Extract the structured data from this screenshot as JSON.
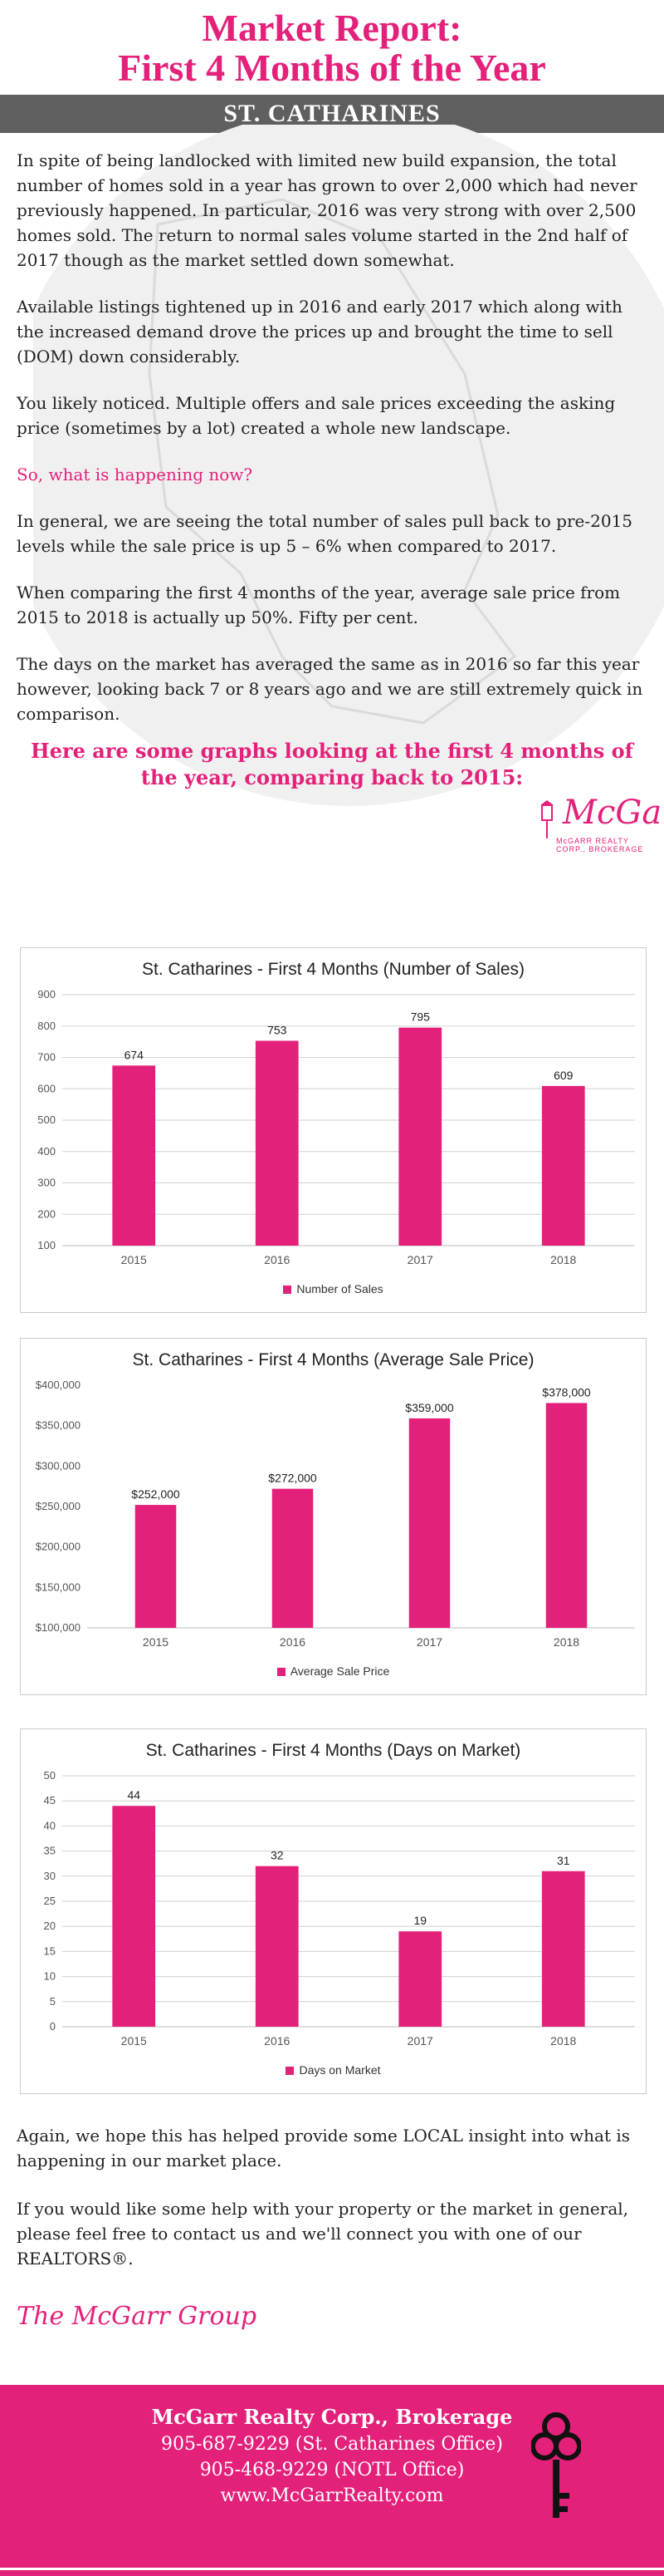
{
  "header": {
    "title_line1": "Market Report:",
    "title_line2": "First 4 Months of the Year",
    "city": "ST. CATHARINES"
  },
  "paragraphs": [
    "In spite of being landlocked with limited new build expansion, the total number of homes sold in a year has grown to over 2,000 which had never previously happened. In particular, 2016 was very strong with over 2,500 homes sold. The return to normal sales volume started in the 2nd half of 2017 though as the market settled down somewhat.",
    "Available listings tightened up in 2016 and early 2017 which along with the increased demand drove the prices up and brought the time to sell (DOM) down considerably.",
    "You likely noticed. Multiple offers and sale prices exceeding the asking price (sometimes by a lot) created a whole new landscape.",
    "So, what is happening now?",
    "In general, we are seeing the total number of sales pull back to pre-2015 levels while the sale price is up 5 – 6% when compared to 2017.",
    "When comparing the first 4 months of the year, average sale price from 2015 to 2018 is actually up 50%. Fifty per cent.",
    "The days on the market has averaged the same as in 2016 so far this year however, looking back 7 or 8 years ago and we are still extremely quick in comparison."
  ],
  "logo": {
    "name": "McGarr",
    "tagline": "McGARR REALTY CORP., BROKERAGE"
  },
  "graphs_heading": "Here are some graphs looking at the first 4 months of the year, comparing back to 2015:",
  "chart_data": [
    {
      "type": "bar",
      "title": "St. Catharines - First 4 Months (Number of Sales)",
      "categories": [
        "2015",
        "2016",
        "2017",
        "2018"
      ],
      "series": [
        {
          "name": "Number of Sales",
          "values": [
            674,
            753,
            795,
            609
          ]
        }
      ],
      "data_labels": [
        "674",
        "753",
        "795",
        "609"
      ],
      "yticks": [
        "900",
        "800",
        "700",
        "600",
        "500",
        "400",
        "300",
        "200",
        "100"
      ],
      "ylim": [
        100,
        900
      ],
      "grid": true,
      "legend": "bottom",
      "color": "#e3217a"
    },
    {
      "type": "bar",
      "title": "St. Catharines - First 4 Months (Average Sale Price)",
      "categories": [
        "2015",
        "2016",
        "2017",
        "2018"
      ],
      "series": [
        {
          "name": "Average Sale Price",
          "values": [
            252000,
            272000,
            359000,
            378000
          ]
        }
      ],
      "data_labels": [
        "$252,000",
        "$272,000",
        "$359,000",
        "$378,000"
      ],
      "yticks": [
        "$400,000",
        "$350,000",
        "$300,000",
        "$250,000",
        "$200,000",
        "$150,000",
        "$100,000"
      ],
      "ylim": [
        100000,
        400000
      ],
      "grid": false,
      "legend": "bottom",
      "color": "#e3217a"
    },
    {
      "type": "bar",
      "title": "St. Catharines - First 4 Months (Days on Market)",
      "categories": [
        "2015",
        "2016",
        "2017",
        "2018"
      ],
      "series": [
        {
          "name": "Days on Market",
          "values": [
            44,
            32,
            19,
            31
          ]
        }
      ],
      "data_labels": [
        "44",
        "32",
        "19",
        "31"
      ],
      "yticks": [
        "50",
        "45",
        "40",
        "35",
        "30",
        "25",
        "20",
        "15",
        "10",
        "5",
        "0"
      ],
      "ylim": [
        0,
        50
      ],
      "grid": true,
      "legend": "bottom",
      "color": "#e3217a"
    }
  ],
  "closing": [
    "Again, we hope this has helped provide some LOCAL insight into what is happening in our market place.",
    "If you would like some help with your property or the market in general, please feel free to contact us and we'll connect you with one of our REALTORS®."
  ],
  "signature": "The McGarr Group",
  "footer": {
    "company": "McGarr Realty Corp., Brokerage",
    "phone_office": "905-687-9229 (St. Catharines Office)",
    "phone_notl": "905-468-9229 (NOTL Office)",
    "website": "www.McGarrRealty.com",
    "icon": "key-icon"
  }
}
